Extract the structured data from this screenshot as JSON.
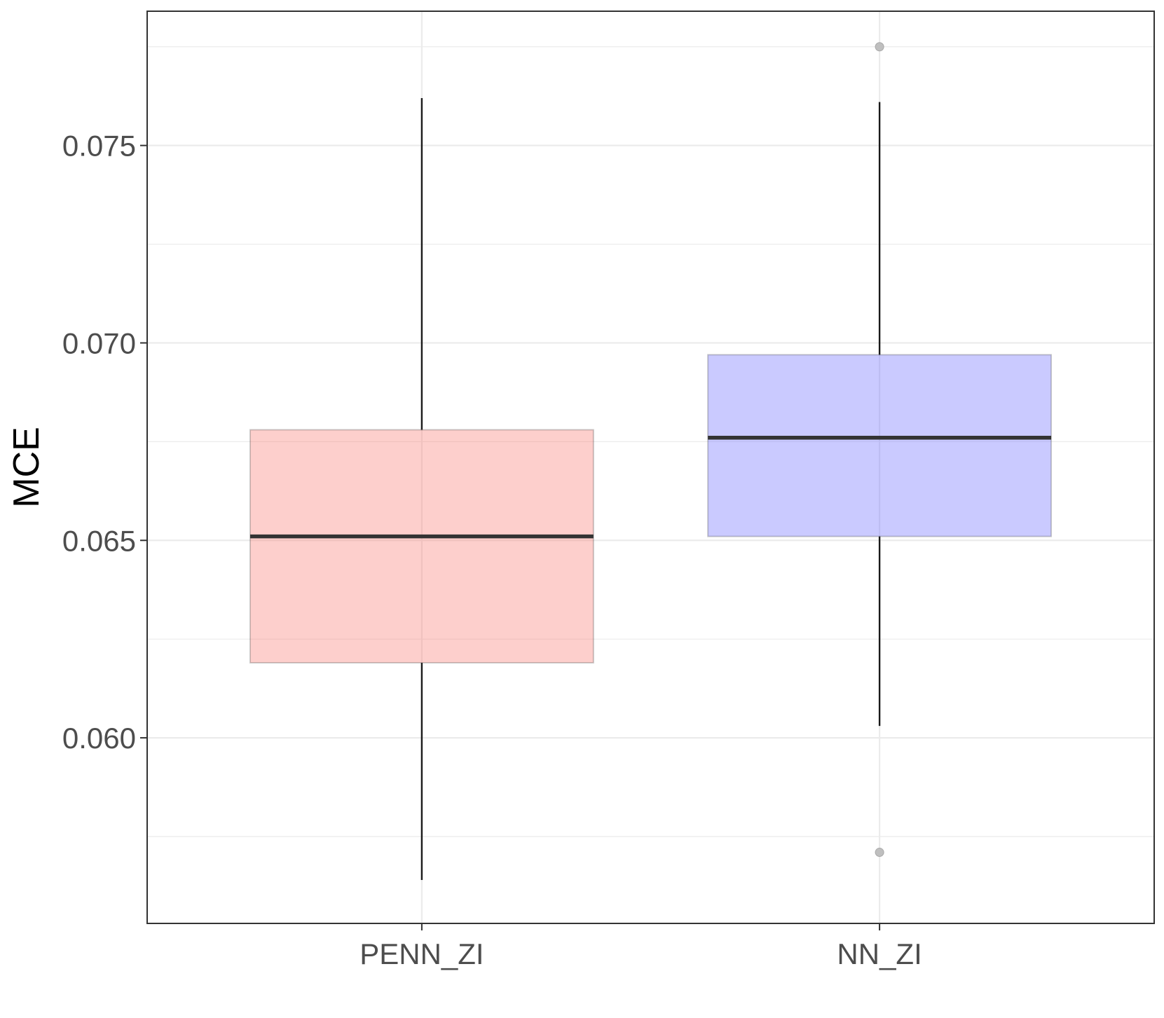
{
  "chart_data": {
    "type": "boxplot",
    "xlabel": "",
    "ylabel": "MCE",
    "ylim": [
      0.0553,
      0.0784
    ],
    "yticks": [
      "0.060",
      "0.065",
      "0.070",
      "0.075"
    ],
    "grid": true,
    "legend": "none",
    "categories": [
      "PENN_ZI",
      "NN_ZI"
    ],
    "boxes": [
      {
        "category": "PENN_ZI",
        "whisker_low": 0.0564,
        "q1": 0.0619,
        "median": 0.0651,
        "q3": 0.0678,
        "whisker_high": 0.0762,
        "outliers": [],
        "color": "#f8766d"
      },
      {
        "category": "NN_ZI",
        "whisker_low": 0.0603,
        "q1": 0.0651,
        "median": 0.0676,
        "q3": 0.0697,
        "whisker_high": 0.0761,
        "outliers": [
          0.0775,
          0.0571
        ],
        "color": "#6666ff"
      }
    ]
  }
}
